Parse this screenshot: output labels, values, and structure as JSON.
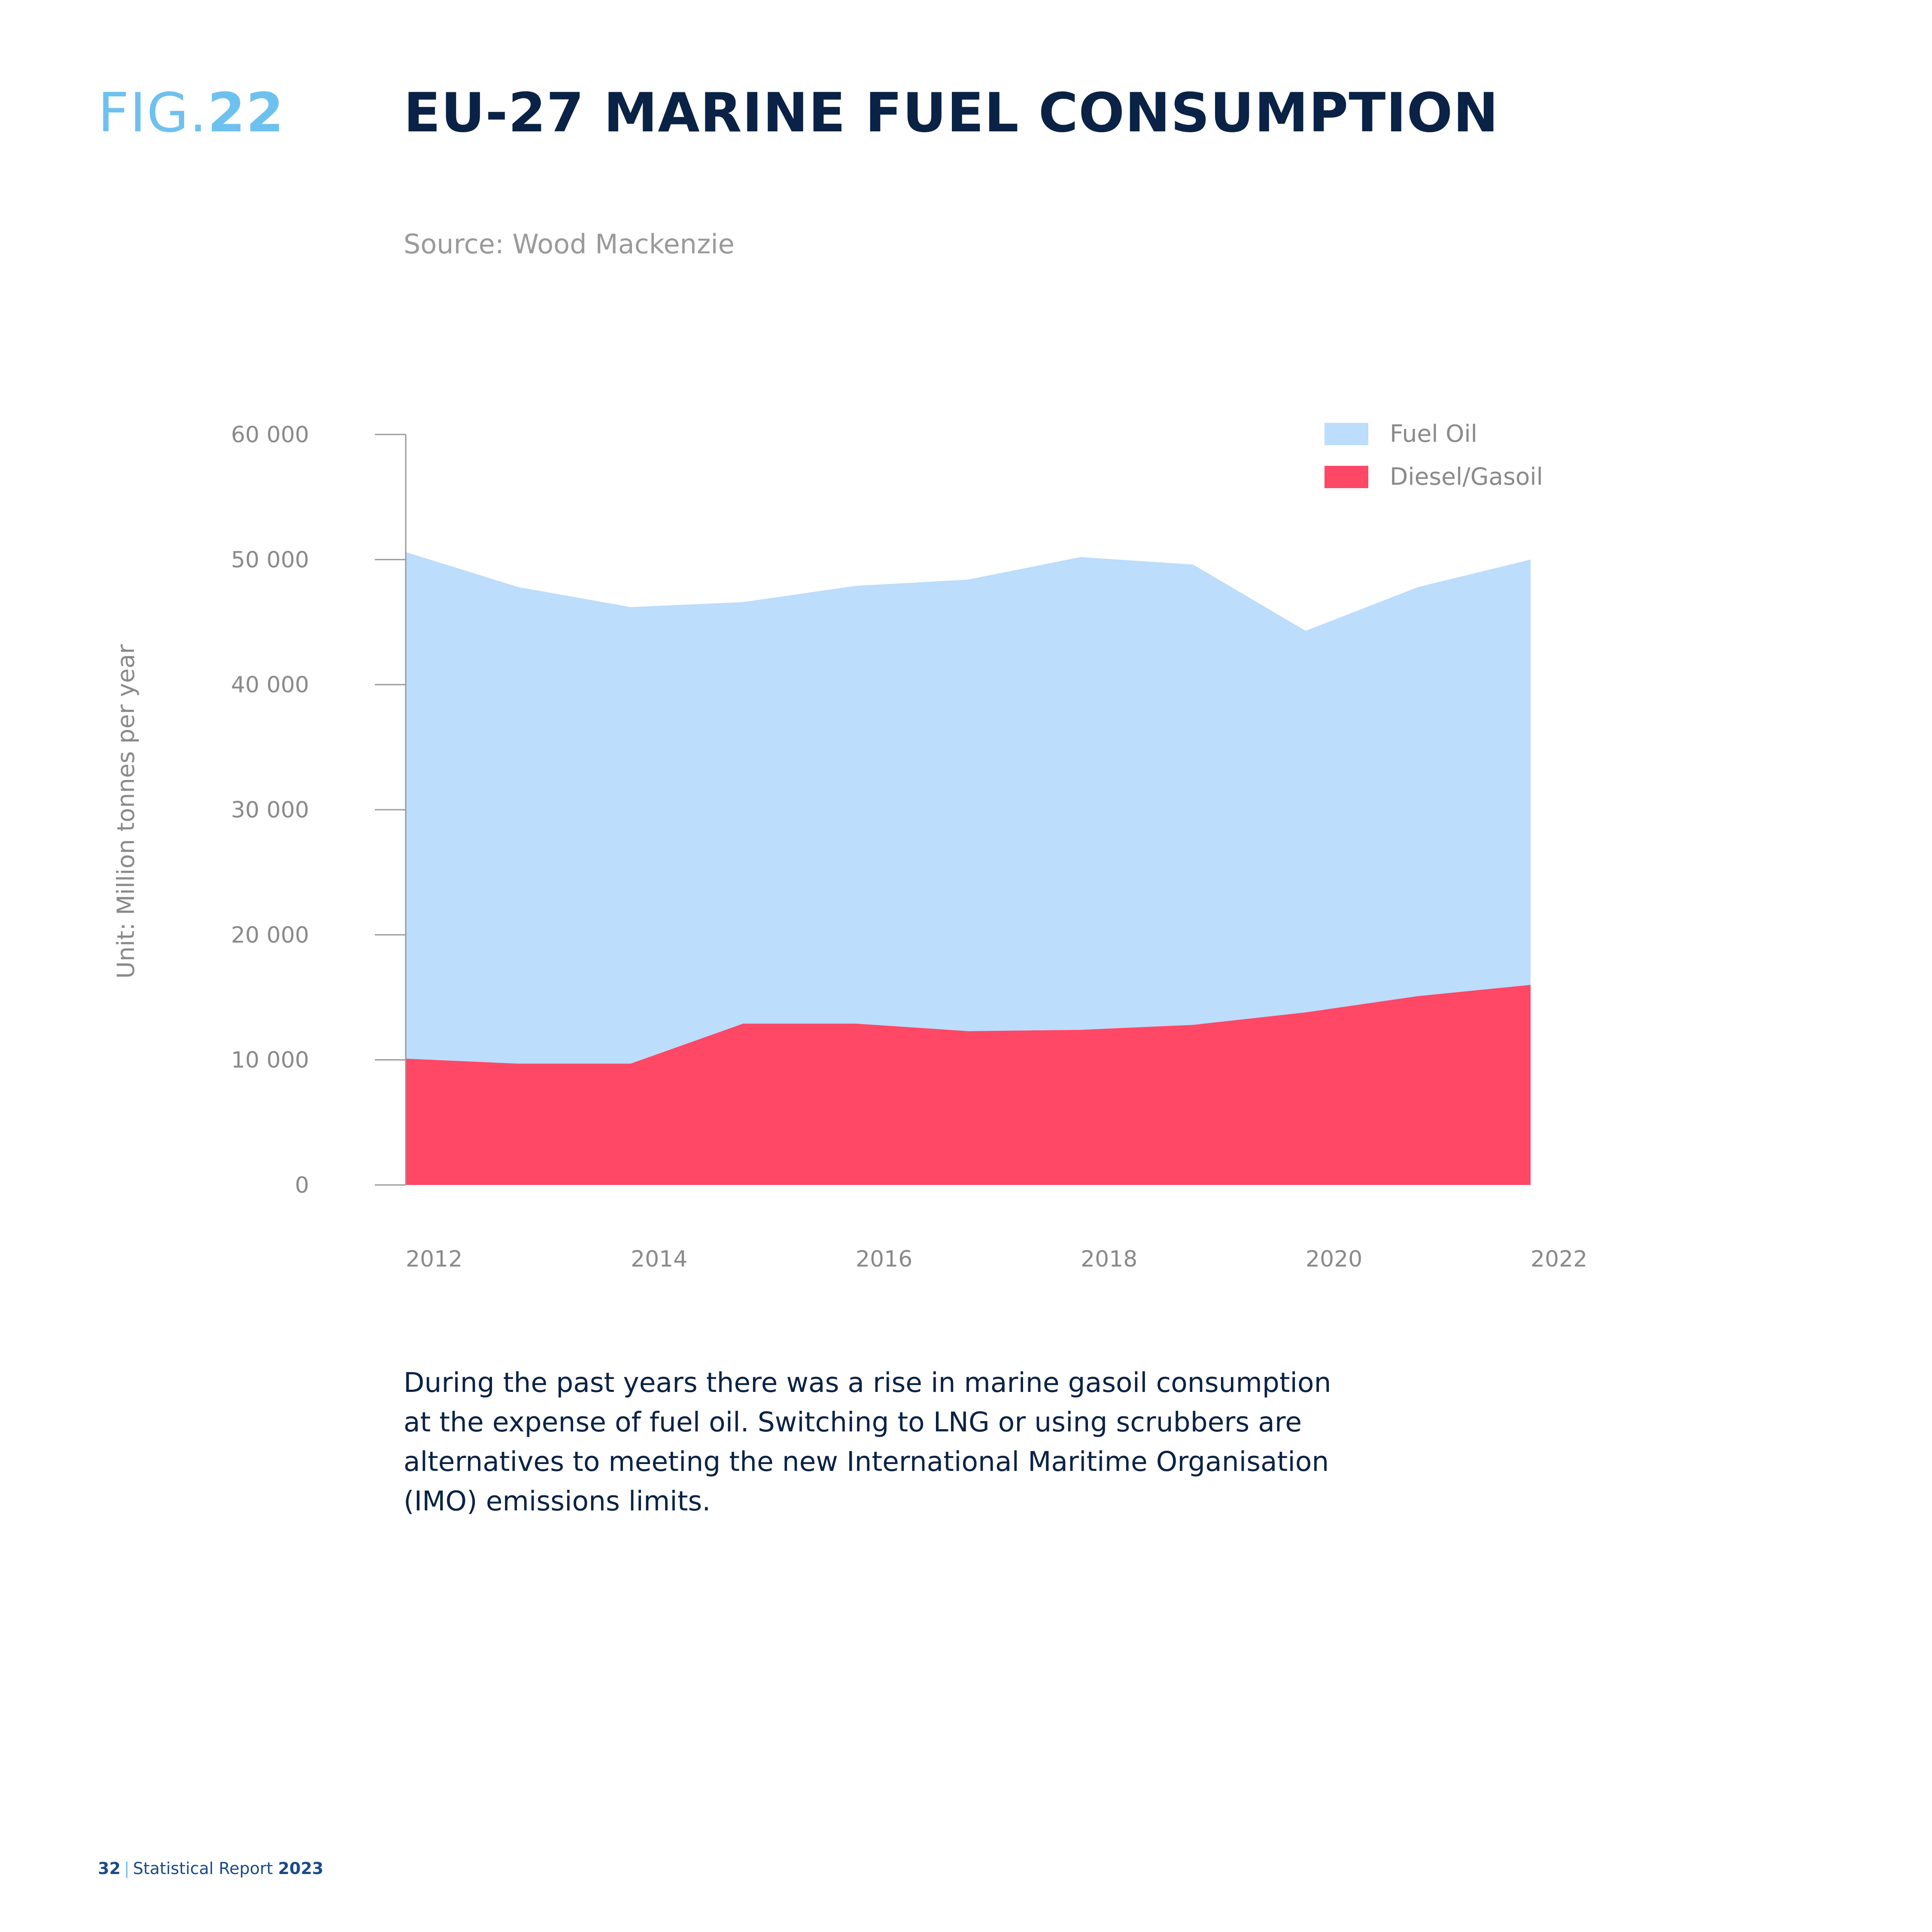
{
  "header": {
    "fig_prefix": "FIG.",
    "fig_number": "22",
    "title": "EU-27 MARINE FUEL CONSUMPTION",
    "source": "Source: Wood Mackenzie"
  },
  "chart_data": {
    "type": "area",
    "stacked": true,
    "x": [
      2012,
      2013,
      2014,
      2015,
      2016,
      2017,
      2018,
      2019,
      2020,
      2021,
      2022
    ],
    "x_tick_labels": [
      "2012",
      "2014",
      "2016",
      "2018",
      "2020",
      "2022"
    ],
    "y_tick_labels": [
      "0",
      "10 000",
      "20 000",
      "30 000",
      "40 000",
      "50 000",
      "60 000"
    ],
    "ylim": [
      0,
      60000
    ],
    "ylabel": "Unit: Million tonnes per year",
    "xlabel": "",
    "legend_position": "top-right",
    "grid": false,
    "series": [
      {
        "name": "Diesel/Gasoil",
        "color": "#ff4766",
        "values": [
          10100,
          9700,
          9700,
          12900,
          12900,
          12300,
          12400,
          12800,
          13800,
          15100,
          16000
        ]
      },
      {
        "name": "Fuel Oil",
        "color": "#bcddfc",
        "values": [
          40500,
          38100,
          36500,
          33700,
          35000,
          36100,
          37800,
          36800,
          30500,
          32700,
          34000
        ]
      }
    ]
  },
  "caption": "During the past years there was a rise in marine gasoil consumption at the expense of fuel oil. Switching to LNG or using scrubbers are alternatives to meeting the new International Maritime Organisation (IMO) emissions limits.",
  "footer": {
    "page_number": "32",
    "separator": "|",
    "report_name": "Statistical Report",
    "year": "2023"
  }
}
